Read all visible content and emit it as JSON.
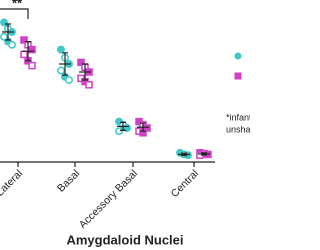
{
  "chart_data": {
    "type": "strip",
    "xlabel": "Amygdaloid Nuclei",
    "categories": [
      "Lateral",
      "Basal",
      "Accessory Basal",
      "Central"
    ],
    "ylim": [
      0,
      100
    ],
    "series": [
      {
        "color": "#40c8c8",
        "marker": "circle",
        "values": [
          [
            86,
            82,
            80,
            77,
            74,
            72
          ],
          [
            69,
            64,
            60,
            56,
            52,
            50
          ],
          [
            24,
            22,
            20,
            18
          ],
          [
            4.5,
            3.5,
            3
          ]
        ],
        "mean": [
          80,
          60,
          21,
          3.5
        ],
        "error": [
          5,
          7,
          2.5,
          0.8
        ]
      },
      {
        "color": "#d040c8",
        "marker": "square",
        "values": [
          [
            75,
            72,
            69,
            66,
            62,
            59
          ],
          [
            61,
            58,
            55,
            51,
            49,
            47
          ],
          [
            24,
            22,
            20,
            18,
            17
          ],
          [
            4.5,
            4,
            3.5,
            3
          ]
        ],
        "mean": [
          68,
          55,
          20.5,
          3.8
        ],
        "error": [
          6,
          5,
          2.5,
          0.7
        ]
      }
    ],
    "annotation": "**",
    "note": [
      "*infant",
      "unshad"
    ]
  }
}
